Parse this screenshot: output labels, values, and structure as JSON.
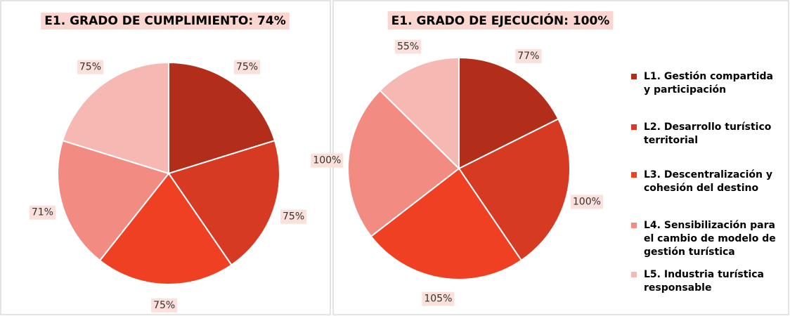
{
  "chart_data": [
    {
      "type": "pie",
      "title": "E1. GRADO DE CUMPLIMIENTO: 74%",
      "values": [
        75,
        75,
        75,
        71,
        75
      ],
      "value_labels": [
        "75%",
        "75%",
        "75%",
        "71%",
        "75%"
      ],
      "colors": [
        "#b22e1a",
        "#d63a22",
        "#ef4023",
        "#f28c82",
        "#f6b8b2"
      ]
    },
    {
      "type": "pie",
      "title": "E1. GRADO DE EJECUCIÓN: 100%",
      "categories": [
        "L1. Gestión compartida y participación",
        "L2. Desarrollo turístico territorial",
        "L3. Descentralización y cohesión del destino",
        "L4. Sensibilización para el cambio de modelo de gestión turística",
        "L5. Industria turística responsable"
      ],
      "values": [
        77,
        100,
        105,
        100,
        55
      ],
      "value_labels": [
        "77%",
        "100%",
        "105%",
        "100%",
        "55%"
      ],
      "colors": [
        "#b22e1a",
        "#d63a22",
        "#ef4023",
        "#f28c82",
        "#f6b8b2"
      ],
      "legend": "right"
    }
  ]
}
